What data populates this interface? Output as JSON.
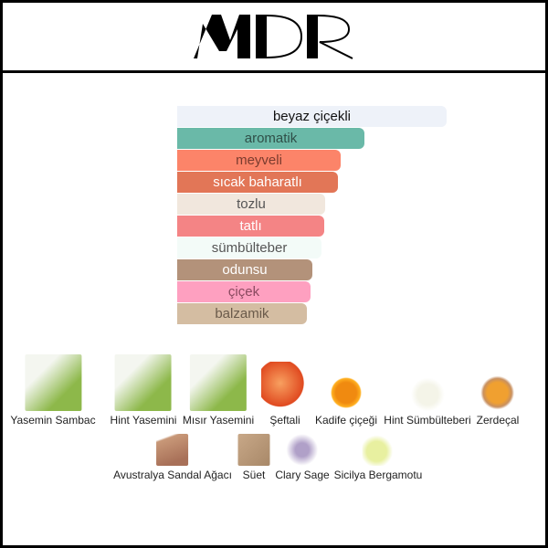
{
  "brand": {
    "logo_text": "MDR"
  },
  "accords": [
    {
      "label": "beyaz çiçekli",
      "strength_pct": 100,
      "color": "#EEF2F9",
      "text_color": "#111111"
    },
    {
      "label": "aromatik",
      "strength_pct": 69.5,
      "color": "#6AB9A8",
      "text_color": "#2f4f48"
    },
    {
      "label": "meyveli",
      "strength_pct": 60.7,
      "color": "#FC8469",
      "text_color": "#7a3b2e"
    },
    {
      "label": "sıcak baharatlı",
      "strength_pct": 59.7,
      "color": "#E27657",
      "text_color": "#ffffff"
    },
    {
      "label": "tozlu",
      "strength_pct": 54.9,
      "color": "#F1E7DD",
      "text_color": "#555555"
    },
    {
      "label": "tatlı",
      "strength_pct": 54.6,
      "color": "#F48485",
      "text_color": "#ffffff"
    },
    {
      "label": "sümbülteber",
      "strength_pct": 53.6,
      "color": "#F3FBF8",
      "text_color": "#555555"
    },
    {
      "label": "odunsu",
      "strength_pct": 50.2,
      "color": "#B3927A",
      "text_color": "#ffffff"
    },
    {
      "label": "çiçek",
      "strength_pct": 49.5,
      "color": "#FEA0C0",
      "text_color": "#8a4a60"
    },
    {
      "label": "balzamik",
      "strength_pct": 48.1,
      "color": "#D4BDA2",
      "text_color": "#6a5a4a"
    }
  ],
  "notes": [
    {
      "label": "Yasemin Sambac",
      "icon": "jasmine-icon"
    },
    {
      "label": "Hint Yasemini",
      "icon": "jasmine-icon"
    },
    {
      "label": "Mısır Yasemini",
      "icon": "jasmine-icon"
    },
    {
      "label": "Şeftali",
      "icon": "peach-icon"
    },
    {
      "label": "Kadife çiçeği",
      "icon": "marigold-icon"
    },
    {
      "label": "Hint Sümbülteberi",
      "icon": "tuberose-icon"
    },
    {
      "label": "Zerdeçal",
      "icon": "turmeric-icon"
    },
    {
      "label": "Avustralya Sandal Ağacı",
      "icon": "sandalwood-icon"
    },
    {
      "label": "Süet",
      "icon": "suede-icon"
    },
    {
      "label": "Clary Sage",
      "icon": "sage-icon"
    },
    {
      "label": "Sicilya Bergamotu",
      "icon": "bergamot-icon"
    }
  ]
}
